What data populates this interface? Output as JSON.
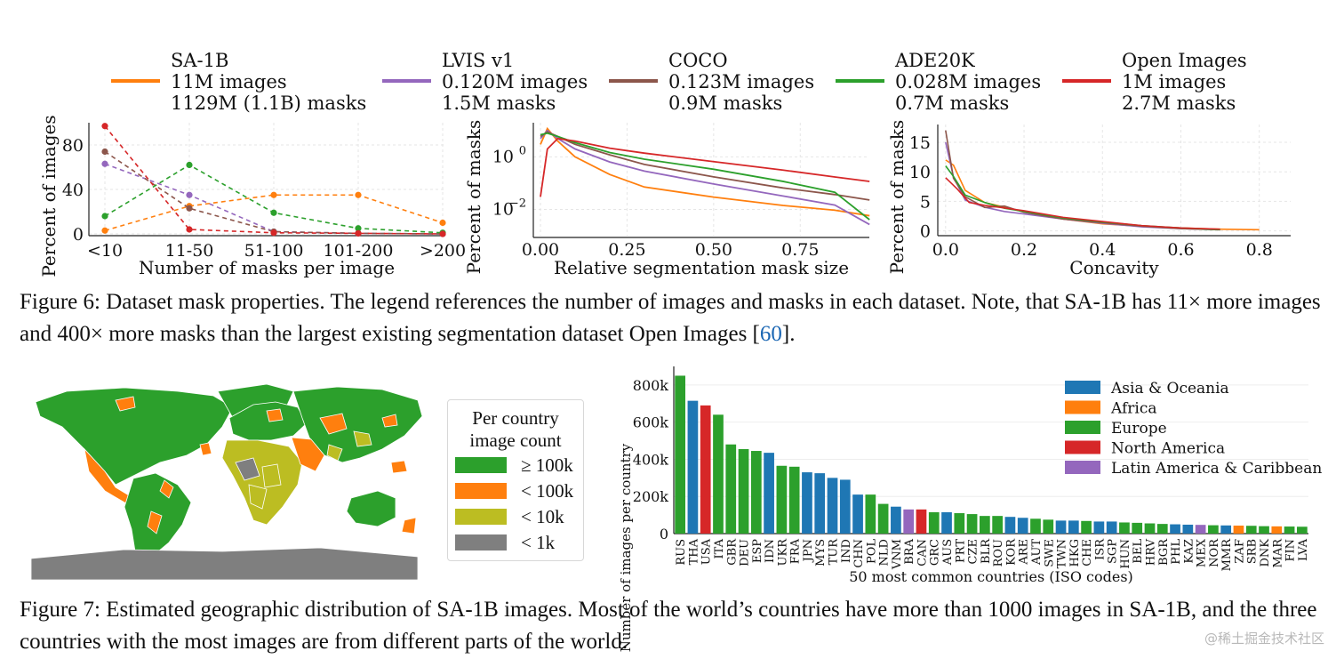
{
  "legend_top": [
    {
      "name": "SA-1B",
      "line1": "11M images",
      "line2": "1129M (1.1B) masks",
      "color": "#ff7f0e"
    },
    {
      "name": "LVIS v1",
      "line1": "0.120M images",
      "line2": "1.5M masks",
      "color": "#9467bd"
    },
    {
      "name": "COCO",
      "line1": "0.123M images",
      "line2": "0.9M masks",
      "color": "#8c564b"
    },
    {
      "name": "ADE20K",
      "line1": "0.028M images",
      "line2": "0.7M masks",
      "color": "#2ca02c"
    },
    {
      "name": "Open Images",
      "line1": "1M images",
      "line2": "2.7M masks",
      "color": "#d62728"
    }
  ],
  "figure6_caption": {
    "text": "Figure 6: Dataset mask properties. The legend references the number of images and masks in each dataset. Note, that SA-1B has 11× more images and 400× more masks than the largest existing segmentation dataset Open Images [",
    "ref": "60",
    "end": "]."
  },
  "figure7_caption": "Figure 7: Estimated geographic distribution of SA-1B images. Most of the world’s countries have more than 1000 images in SA-1B, and the three countries with the most images are from different parts of the world.",
  "map_legend": {
    "title_line1": "Per country",
    "title_line2": "image count",
    "items": [
      {
        "label": "≥ 100k",
        "color": "#2ca02c"
      },
      {
        "label": "< 100k",
        "color": "#ff7f0e"
      },
      {
        "label": "< 10k",
        "color": "#bcbd22"
      },
      {
        "label": "< 1k",
        "color": "#7f7f7f"
      }
    ]
  },
  "watermark": "@稀土掘金技术社区",
  "chart_data": [
    {
      "type": "line",
      "id": "masks-per-image",
      "title": "",
      "xlabel": "Number of masks per image",
      "ylabel": "Percent of images",
      "categories": [
        "<10",
        "11-50",
        "51-100",
        "101-200",
        ">200"
      ],
      "ylim": [
        0,
        100
      ],
      "yticks": [
        0,
        40,
        80
      ],
      "series": [
        {
          "name": "SA-1B",
          "color": "#ff7f0e",
          "values": [
            3,
            25,
            35,
            35,
            10
          ]
        },
        {
          "name": "LVIS v1",
          "color": "#9467bd",
          "values": [
            63,
            35,
            2,
            0.5,
            0
          ]
        },
        {
          "name": "COCO",
          "color": "#8c564b",
          "values": [
            74,
            23,
            2,
            0.5,
            0
          ]
        },
        {
          "name": "ADE20K",
          "color": "#2ca02c",
          "values": [
            16,
            62,
            19,
            5,
            1
          ]
        },
        {
          "name": "Open Images",
          "color": "#d62728",
          "values": [
            97,
            4,
            1,
            0.5,
            0
          ]
        }
      ]
    },
    {
      "type": "line",
      "id": "mask-size",
      "title": "",
      "xlabel": "Relative segmentation mask size",
      "ylabel": "Percent of masks",
      "yscale": "log",
      "xlim": [
        0,
        0.97
      ],
      "ylim": [
        0.001,
        20
      ],
      "xticks": [
        "0.00",
        "0.25",
        "0.50",
        "0.75"
      ],
      "yticks": [
        {
          "value": 1,
          "base": "10",
          "exp": "0"
        },
        {
          "value": 0.01,
          "base": "10",
          "exp": "−2"
        }
      ],
      "series": [
        {
          "name": "SA-1B",
          "color": "#ff7f0e",
          "x": [
            0,
            0.02,
            0.05,
            0.1,
            0.2,
            0.3,
            0.5,
            0.7,
            0.85,
            0.95
          ],
          "y": [
            3,
            12,
            4,
            1,
            0.25,
            0.08,
            0.03,
            0.013,
            0.008,
            0.005
          ]
        },
        {
          "name": "LVIS v1",
          "color": "#9467bd",
          "x": [
            0,
            0.02,
            0.05,
            0.1,
            0.2,
            0.3,
            0.5,
            0.7,
            0.85,
            0.95
          ],
          "y": [
            5,
            10,
            5,
            2,
            0.6,
            0.25,
            0.08,
            0.03,
            0.015,
            0.003
          ]
        },
        {
          "name": "COCO",
          "color": "#8c564b",
          "x": [
            0,
            0.02,
            0.05,
            0.1,
            0.2,
            0.3,
            0.5,
            0.7,
            0.85,
            0.95
          ],
          "y": [
            6,
            9,
            6,
            3,
            1.3,
            0.6,
            0.2,
            0.07,
            0.035,
            0.02
          ]
        },
        {
          "name": "ADE20K",
          "color": "#2ca02c",
          "x": [
            0,
            0.02,
            0.05,
            0.1,
            0.2,
            0.3,
            0.5,
            0.7,
            0.85,
            0.95
          ],
          "y": [
            7,
            8,
            6,
            3.5,
            1.6,
            0.8,
            0.3,
            0.1,
            0.04,
            0.004
          ]
        },
        {
          "name": "Open Images",
          "color": "#d62728",
          "x": [
            0,
            0.02,
            0.05,
            0.1,
            0.2,
            0.3,
            0.5,
            0.7,
            0.85,
            0.95
          ],
          "y": [
            0.03,
            2,
            5,
            4,
            2.5,
            1.6,
            0.7,
            0.3,
            0.15,
            0.1
          ]
        }
      ]
    },
    {
      "type": "line",
      "id": "concavity",
      "title": "",
      "xlabel": "Concavity",
      "ylabel": "Percent of masks",
      "xlim": [
        -0.02,
        0.88
      ],
      "ylim": [
        -0.5,
        18
      ],
      "xticks": [
        0,
        0.2,
        0.4,
        0.6,
        0.8
      ],
      "xticklabels": [
        "0.0",
        "0.2",
        "0.4",
        "0.6",
        "0.8"
      ],
      "yticks": [
        0,
        5,
        10,
        15
      ],
      "series": [
        {
          "name": "SA-1B",
          "color": "#ff7f0e",
          "x": [
            0,
            0.02,
            0.05,
            0.1,
            0.15,
            0.2,
            0.3,
            0.4,
            0.5,
            0.6,
            0.7,
            0.8
          ],
          "y": [
            12,
            11,
            7,
            5,
            4,
            3,
            2,
            1.2,
            0.8,
            0.5,
            0.3,
            0.2
          ]
        },
        {
          "name": "LVIS v1",
          "color": "#9467bd",
          "x": [
            0,
            0.02,
            0.05,
            0.1,
            0.15,
            0.2,
            0.3,
            0.4,
            0.5,
            0.6,
            0.7
          ],
          "y": [
            15,
            9,
            5,
            4,
            3.5,
            3,
            2,
            1.3,
            0.7,
            0.4,
            0.2
          ]
        },
        {
          "name": "COCO",
          "color": "#8c564b",
          "x": [
            0,
            0.02,
            0.05,
            0.1,
            0.15,
            0.2,
            0.3,
            0.4,
            0.5,
            0.6,
            0.7
          ],
          "y": [
            17,
            9,
            6,
            4,
            4,
            3,
            2,
            1.4,
            0.8,
            0.4,
            0.2
          ]
        },
        {
          "name": "ADE20K",
          "color": "#2ca02c",
          "x": [
            0,
            0.02,
            0.05,
            0.1,
            0.15,
            0.2,
            0.3,
            0.4,
            0.5,
            0.6,
            0.7
          ],
          "y": [
            11,
            9,
            6,
            5,
            4,
            3.2,
            2.2,
            1.5,
            0.9,
            0.5,
            0.2
          ]
        },
        {
          "name": "Open Images",
          "color": "#d62728",
          "x": [
            0,
            0.03,
            0.06,
            0.1,
            0.15,
            0.2,
            0.3,
            0.4,
            0.5,
            0.6,
            0.7
          ],
          "y": [
            9,
            7,
            5,
            4.5,
            3.8,
            3.2,
            2.3,
            1.6,
            0.9,
            0.5,
            0.3
          ]
        }
      ]
    },
    {
      "type": "bar",
      "id": "countries",
      "title": "",
      "xlabel": "50 most common countries (ISO codes)",
      "ylabel": "Number of images per country",
      "ylim": [
        0,
        900000
      ],
      "yticks": [
        0,
        200000,
        400000,
        600000,
        800000
      ],
      "yticklabels": [
        "0",
        "200k",
        "400k",
        "600k",
        "800k"
      ],
      "regions": [
        {
          "name": "Asia & Oceania",
          "color": "#1f77b4"
        },
        {
          "name": "Africa",
          "color": "#ff7f0e"
        },
        {
          "name": "Europe",
          "color": "#2ca02c"
        },
        {
          "name": "North America",
          "color": "#d62728"
        },
        {
          "name": "Latin America & Caribbean",
          "color": "#9467bd"
        }
      ],
      "categories": [
        "RUS",
        "THA",
        "USA",
        "ITA",
        "GBR",
        "DEU",
        "ESP",
        "IDN",
        "UKR",
        "FRA",
        "JPN",
        "MYS",
        "TUR",
        "IND",
        "CHN",
        "POL",
        "NLD",
        "VNM",
        "BRA",
        "CAN",
        "GRC",
        "AUS",
        "PRT",
        "CZE",
        "BLR",
        "ROU",
        "KOR",
        "ARE",
        "AUT",
        "SWE",
        "TWN",
        "HKG",
        "CHE",
        "ISR",
        "SGP",
        "HUN",
        "BEL",
        "HRV",
        "BGR",
        "PHL",
        "KAZ",
        "MEX",
        "NOR",
        "MMR",
        "ZAF",
        "SRB",
        "DNK",
        "MAR",
        "FIN",
        "LVA"
      ],
      "region_index": [
        2,
        0,
        3,
        2,
        2,
        2,
        2,
        0,
        2,
        2,
        0,
        0,
        0,
        0,
        0,
        2,
        2,
        0,
        4,
        3,
        2,
        0,
        2,
        2,
        2,
        2,
        0,
        0,
        2,
        2,
        0,
        0,
        2,
        0,
        0,
        2,
        2,
        2,
        2,
        0,
        0,
        4,
        2,
        0,
        1,
        2,
        2,
        1,
        2,
        2
      ],
      "values": [
        850000,
        715000,
        690000,
        640000,
        480000,
        455000,
        445000,
        435000,
        365000,
        360000,
        330000,
        325000,
        300000,
        290000,
        210000,
        210000,
        160000,
        145000,
        130000,
        130000,
        115000,
        115000,
        110000,
        105000,
        95000,
        95000,
        90000,
        85000,
        80000,
        75000,
        70000,
        70000,
        68000,
        65000,
        65000,
        60000,
        58000,
        55000,
        52000,
        50000,
        48000,
        47000,
        45000,
        44000,
        43000,
        42000,
        40000,
        39000,
        38000,
        37000
      ]
    }
  ],
  "map": {
    "regions": [
      {
        "name": "North America",
        "category": 0
      },
      {
        "name": "Greenland",
        "category": 0
      },
      {
        "name": "Mexico & Central America",
        "category": 1
      },
      {
        "name": "South America",
        "category": 0
      },
      {
        "name": "Europe",
        "category": 0
      },
      {
        "name": "Africa",
        "category": 2
      },
      {
        "name": "Russia & Asia",
        "category": 0
      },
      {
        "name": "Middle East",
        "category": 1
      },
      {
        "name": "Australia",
        "category": 0
      },
      {
        "name": "Antarctica",
        "category": 3
      }
    ]
  }
}
